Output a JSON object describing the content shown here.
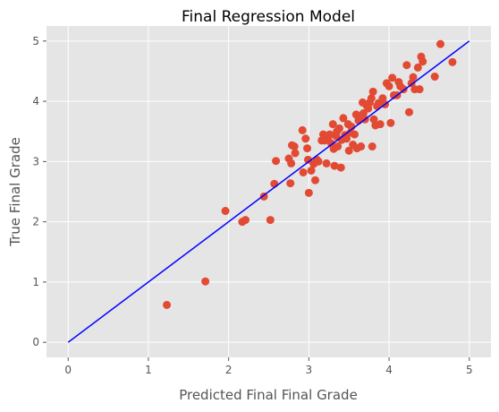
{
  "chart_data": {
    "type": "scatter",
    "title": "Final Regression Model",
    "xlabel": "Predicted Final Final Grade",
    "ylabel": "True Final Grade",
    "xlim": [
      -0.27,
      5.27
    ],
    "ylim": [
      -0.25,
      5.25
    ],
    "xticks": [
      "0",
      "1",
      "2",
      "3",
      "4",
      "5"
    ],
    "yticks": [
      "0",
      "1",
      "2",
      "3",
      "4",
      "5"
    ],
    "grid": true,
    "colors": {
      "background": "#e5e5e5",
      "grid": "#ffffff",
      "points": "#e24a33",
      "line": "#0000ff"
    },
    "line": {
      "x": [
        0,
        5
      ],
      "y": [
        0,
        5
      ]
    },
    "points": [
      [
        1.23,
        0.62
      ],
      [
        1.71,
        1.01
      ],
      [
        1.96,
        2.18
      ],
      [
        2.17,
        2.0
      ],
      [
        2.21,
        2.03
      ],
      [
        2.44,
        2.42
      ],
      [
        2.52,
        2.03
      ],
      [
        2.57,
        2.63
      ],
      [
        2.59,
        3.01
      ],
      [
        2.75,
        3.05
      ],
      [
        2.77,
        2.64
      ],
      [
        2.78,
        2.97
      ],
      [
        2.79,
        3.27
      ],
      [
        2.82,
        3.25
      ],
      [
        2.83,
        3.14
      ],
      [
        2.92,
        3.52
      ],
      [
        2.93,
        2.82
      ],
      [
        2.96,
        3.38
      ],
      [
        2.98,
        3.22
      ],
      [
        2.99,
        3.03
      ],
      [
        3.0,
        2.48
      ],
      [
        3.03,
        2.85
      ],
      [
        3.06,
        2.96
      ],
      [
        3.08,
        2.69
      ],
      [
        3.1,
        3.03
      ],
      [
        3.12,
        3.0
      ],
      [
        3.16,
        3.35
      ],
      [
        3.18,
        3.45
      ],
      [
        3.2,
        3.35
      ],
      [
        3.22,
        2.97
      ],
      [
        3.24,
        3.4
      ],
      [
        3.26,
        3.45
      ],
      [
        3.28,
        3.3
      ],
      [
        3.3,
        3.62
      ],
      [
        3.31,
        3.21
      ],
      [
        3.32,
        2.93
      ],
      [
        3.34,
        3.42
      ],
      [
        3.35,
        3.5
      ],
      [
        3.36,
        3.25
      ],
      [
        3.38,
        3.55
      ],
      [
        3.4,
        2.9
      ],
      [
        3.41,
        3.36
      ],
      [
        3.43,
        3.72
      ],
      [
        3.45,
        3.44
      ],
      [
        3.47,
        3.38
      ],
      [
        3.49,
        3.62
      ],
      [
        3.5,
        3.18
      ],
      [
        3.52,
        3.48
      ],
      [
        3.53,
        3.58
      ],
      [
        3.55,
        3.28
      ],
      [
        3.57,
        3.45
      ],
      [
        3.59,
        3.78
      ],
      [
        3.6,
        3.22
      ],
      [
        3.62,
        3.68
      ],
      [
        3.64,
        3.75
      ],
      [
        3.65,
        3.25
      ],
      [
        3.67,
        3.98
      ],
      [
        3.68,
        3.8
      ],
      [
        3.7,
        3.7
      ],
      [
        3.72,
        3.93
      ],
      [
        3.74,
        3.88
      ],
      [
        3.76,
        3.98
      ],
      [
        3.78,
        4.05
      ],
      [
        3.79,
        3.25
      ],
      [
        3.8,
        4.16
      ],
      [
        3.81,
        3.7
      ],
      [
        3.83,
        3.6
      ],
      [
        3.85,
        3.92
      ],
      [
        3.87,
        3.97
      ],
      [
        3.89,
        3.62
      ],
      [
        3.92,
        4.05
      ],
      [
        3.95,
        3.95
      ],
      [
        3.97,
        4.3
      ],
      [
        4.0,
        4.25
      ],
      [
        4.02,
        3.64
      ],
      [
        4.04,
        4.39
      ],
      [
        4.06,
        4.1
      ],
      [
        4.1,
        4.1
      ],
      [
        4.12,
        4.32
      ],
      [
        4.14,
        4.25
      ],
      [
        4.18,
        4.2
      ],
      [
        4.22,
        4.6
      ],
      [
        4.25,
        3.82
      ],
      [
        4.28,
        4.3
      ],
      [
        4.3,
        4.4
      ],
      [
        4.32,
        4.2
      ],
      [
        4.36,
        4.56
      ],
      [
        4.38,
        4.2
      ],
      [
        4.4,
        4.74
      ],
      [
        4.42,
        4.66
      ],
      [
        4.57,
        4.41
      ],
      [
        4.64,
        4.95
      ],
      [
        4.79,
        4.65
      ]
    ]
  }
}
